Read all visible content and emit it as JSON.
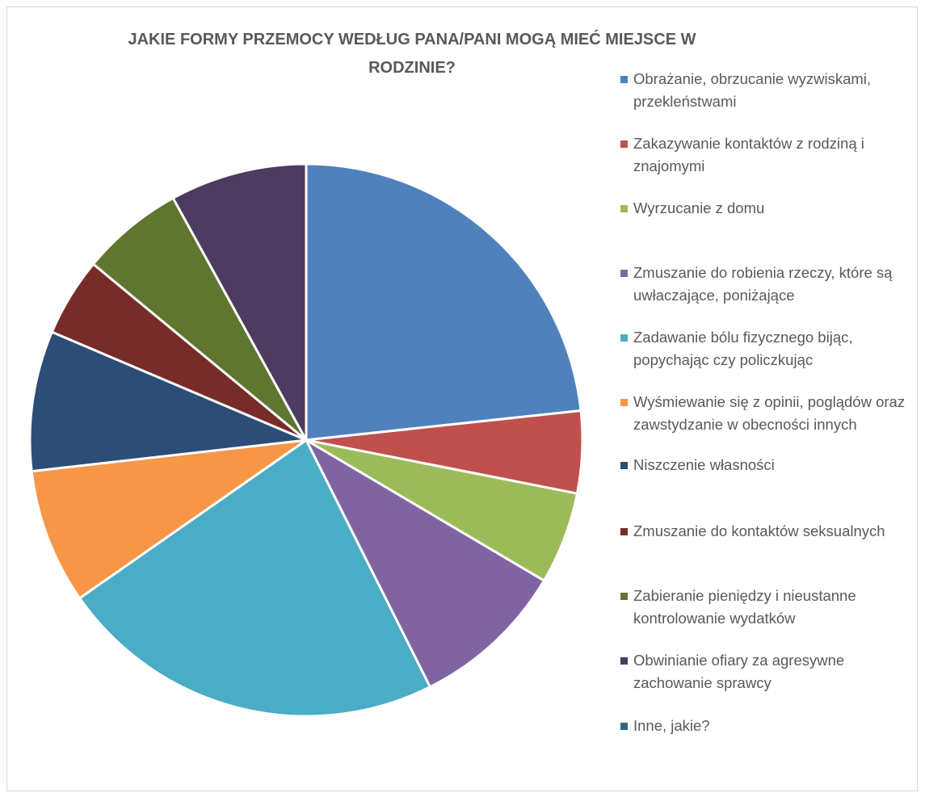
{
  "chart_data": {
    "type": "pie",
    "title": "JAKIE FORMY PRZEMOCY WEDŁUG PANA/PANI MOGĄ MIEĆ MIEJSCE W RODZINIE?",
    "legend_position": "right",
    "slices": [
      {
        "label": "Obrażanie, obrzucanie wyzwiskami, przekleństwami",
        "value": 23.3,
        "color": "#4f81bd"
      },
      {
        "label": "Zakazywanie kontaktów z rodziną i znajomymi",
        "value": 4.8,
        "color": "#c0504d"
      },
      {
        "label": "Wyrzucanie z domu",
        "value": 5.4,
        "color": "#9bbb59"
      },
      {
        "label": "Zmuszanie do robienia rzeczy, które są uwłaczające, poniżające",
        "value": 9.1,
        "color": "#8064a2"
      },
      {
        "label": "Zadawanie bólu fizycznego bijąc, popychając czy policzkując",
        "value": 22.7,
        "color": "#4bacc6"
      },
      {
        "label": "Wyśmiewanie się z opinii, poglądów oraz zawstydzanie w obecności innych",
        "value": 7.9,
        "color": "#f79646"
      },
      {
        "label": "Niszczenie własności",
        "value": 8.2,
        "color": "#2c4d75"
      },
      {
        "label": "Zmuszanie do kontaktów seksualnych",
        "value": 4.6,
        "color": "#772c2a"
      },
      {
        "label": "Zabieranie pieniędzy i nieustanne kontrolowanie wydatków",
        "value": 6.0,
        "color": "#5f7530"
      },
      {
        "label": "Obwinianie ofiary za agresywne zachowanie sprawcy",
        "value": 8.0,
        "color": "#4d3b62"
      },
      {
        "label": "Inne, jakie?",
        "value": 0,
        "color": "#276a7c"
      }
    ]
  }
}
